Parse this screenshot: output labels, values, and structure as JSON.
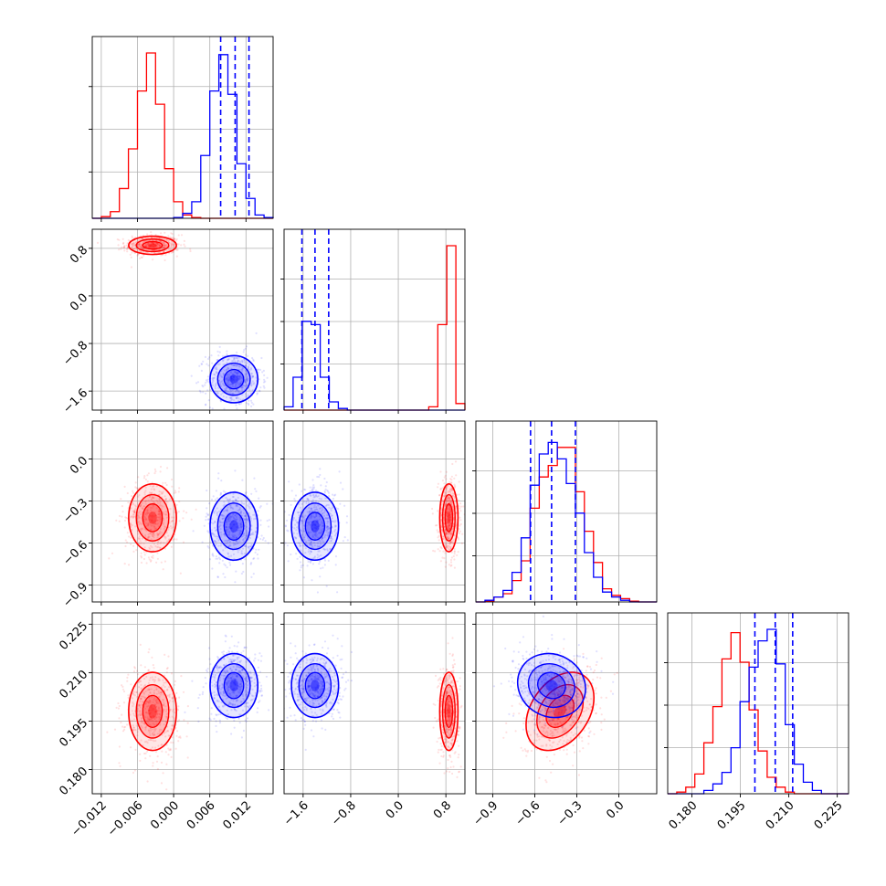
{
  "chart_data": {
    "type": "corner",
    "grid": true,
    "series": [
      {
        "name": "",
        "color": "#ff0000",
        "mean": [
          -0.0035,
          0.85,
          -0.42,
          0.198
        ],
        "std": [
          0.0018,
          0.07,
          0.11,
          0.0055
        ],
        "corr_p3_p4": 0.35
      },
      {
        "name": "",
        "color": "#0000ff",
        "mean": [
          0.01,
          -1.4,
          -0.48,
          0.206
        ],
        "std": [
          0.0018,
          0.18,
          0.11,
          0.0045
        ],
        "corr_p3_p4": -0.1
      }
    ],
    "quantile_lines": {
      "color": "#0000ff",
      "p1": [
        0.0078,
        0.0102,
        0.0125
      ],
      "p2": [
        -1.62,
        -1.4,
        -1.17
      ],
      "p3": [
        -0.63,
        -0.48,
        -0.31
      ],
      "p4": [
        0.1995,
        0.2058,
        0.2112
      ]
    },
    "params": [
      {
        "range": [
          -0.0135,
          0.0165
        ],
        "ticks": [
          "−0.012",
          "−0.006",
          "0.000",
          "0.006",
          "0.012"
        ],
        "tick_values": [
          -0.012,
          -0.006,
          0.0,
          0.006,
          0.012
        ]
      },
      {
        "range": [
          -1.92,
          1.12
        ],
        "ticks": [
          "−1.6",
          "−0.8",
          "0.0",
          "0.8"
        ],
        "tick_values": [
          -1.6,
          -0.8,
          0.0,
          0.8
        ]
      },
      {
        "range": [
          -1.02,
          0.27
        ],
        "ticks": [
          "−0.9",
          "−0.6",
          "−0.3",
          "0.0"
        ],
        "tick_values": [
          -0.9,
          -0.6,
          -0.3,
          0.0
        ]
      },
      {
        "range": [
          0.1725,
          0.2285
        ],
        "ticks": [
          "0.180",
          "0.195",
          "0.210",
          "0.225"
        ],
        "tick_values": [
          0.18,
          0.195,
          0.21,
          0.225
        ]
      }
    ],
    "diagonal_histograms": [
      {
        "edges": [
          -0.0135,
          -0.012,
          -0.0105,
          -0.009,
          -0.0075,
          -0.006,
          -0.0045,
          -0.003,
          -0.0015,
          0.0,
          0.0015,
          0.003,
          0.0045,
          0.006,
          0.0075,
          0.009,
          0.0105,
          0.012,
          0.0135,
          0.015,
          0.0165
        ],
        "red": [
          0.0,
          0.01,
          0.04,
          0.18,
          0.42,
          0.77,
          1.0,
          0.69,
          0.3,
          0.1,
          0.02,
          0.005,
          0.0,
          0.0,
          0.0,
          0.0,
          0.0,
          0.0,
          0.0,
          0.0
        ],
        "blue": [
          0.0,
          0.0,
          0.0,
          0.0,
          0.0,
          0.0,
          0.0,
          0.0,
          0.0,
          0.005,
          0.03,
          0.1,
          0.38,
          0.77,
          0.99,
          0.75,
          0.33,
          0.12,
          0.02,
          0.005
        ]
      },
      {
        "edges": [
          -1.92,
          -1.768,
          -1.616,
          -1.464,
          -1.312,
          -1.16,
          -1.008,
          -0.856,
          -0.704,
          -0.552,
          -0.4,
          -0.248,
          -0.096,
          0.056,
          0.208,
          0.36,
          0.512,
          0.664,
          0.816,
          0.968,
          1.12
        ],
        "red": [
          0.0,
          0.0,
          0.0,
          0.0,
          0.0,
          0.0,
          0.0,
          0.0,
          0.0,
          0.0,
          0.0,
          0.0,
          0.0,
          0.0,
          0.0,
          0.0,
          0.02,
          0.52,
          1.0,
          0.04
        ],
        "blue": [
          0.02,
          0.2,
          0.54,
          0.52,
          0.2,
          0.05,
          0.01,
          0.0,
          0.0,
          0.0,
          0.0,
          0.0,
          0.0,
          0.0,
          0.0,
          0.0,
          0.0,
          0.0,
          0.0,
          0.0
        ]
      },
      {
        "edges": [
          -1.02,
          -0.955,
          -0.891,
          -0.826,
          -0.762,
          -0.697,
          -0.633,
          -0.568,
          -0.504,
          -0.439,
          -0.375,
          -0.31,
          -0.246,
          -0.181,
          -0.117,
          -0.052,
          0.012,
          0.077,
          0.141,
          0.206,
          0.27
        ],
        "red": [
          0.0,
          0.005,
          0.03,
          0.05,
          0.13,
          0.25,
          0.57,
          0.76,
          0.83,
          0.94,
          0.94,
          0.67,
          0.43,
          0.24,
          0.08,
          0.04,
          0.02,
          0.005,
          0.0,
          0.0
        ],
        "blue": [
          0.0,
          0.01,
          0.03,
          0.07,
          0.18,
          0.39,
          0.71,
          0.9,
          0.97,
          0.87,
          0.72,
          0.54,
          0.3,
          0.15,
          0.06,
          0.03,
          0.01,
          0.0,
          0.0,
          0.0
        ]
      },
      {
        "edges": [
          0.1725,
          0.1753,
          0.1781,
          0.1809,
          0.1837,
          0.1865,
          0.1893,
          0.1921,
          0.1949,
          0.1977,
          0.2005,
          0.2033,
          0.2061,
          0.2089,
          0.2117,
          0.2145,
          0.2173,
          0.2201,
          0.2229,
          0.2257,
          0.2285
        ],
        "red": [
          0.0,
          0.01,
          0.04,
          0.12,
          0.31,
          0.53,
          0.82,
          0.98,
          0.8,
          0.51,
          0.26,
          0.1,
          0.04,
          0.01,
          0.0,
          0.0,
          0.0,
          0.0,
          0.0,
          0.0
        ],
        "blue": [
          0.0,
          0.0,
          0.0,
          0.0,
          0.02,
          0.06,
          0.13,
          0.28,
          0.56,
          0.77,
          0.93,
          1.0,
          0.79,
          0.42,
          0.18,
          0.07,
          0.02,
          0.0,
          0.0,
          0.0
        ]
      }
    ]
  }
}
